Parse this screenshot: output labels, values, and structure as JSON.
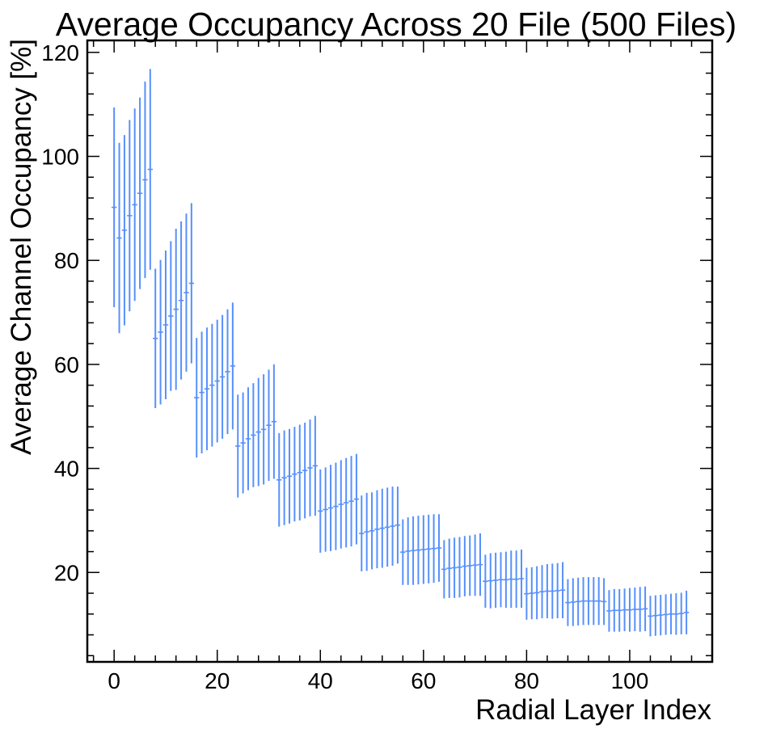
{
  "chart_data": {
    "type": "errorbar",
    "title": "Average Occupancy Across 20 File (500 Files)",
    "xlabel": "Radial Layer Index",
    "ylabel": "Average Channel Occupancy [%]",
    "xlim": [
      -5.2,
      116
    ],
    "ylim": [
      2.8,
      122.3
    ],
    "x_ticks": [
      0,
      20,
      40,
      60,
      80,
      100
    ],
    "y_ticks": [
      20,
      40,
      60,
      80,
      100,
      120
    ],
    "x_minor_step": 4,
    "y_minor_step": 4,
    "grid": false,
    "legend": "none",
    "series": [
      {
        "color": "#5790fc",
        "x": [
          0,
          1,
          2,
          3,
          4,
          5,
          6,
          7,
          8,
          9,
          10,
          11,
          12,
          13,
          14,
          15,
          16,
          17,
          18,
          19,
          20,
          21,
          22,
          23,
          24,
          25,
          26,
          27,
          28,
          29,
          30,
          31,
          32,
          33,
          34,
          35,
          36,
          37,
          38,
          39,
          40,
          41,
          42,
          43,
          44,
          45,
          46,
          47,
          48,
          49,
          50,
          51,
          52,
          53,
          54,
          55,
          56,
          57,
          58,
          59,
          60,
          61,
          62,
          63,
          64,
          65,
          66,
          67,
          68,
          69,
          70,
          71,
          72,
          73,
          74,
          75,
          76,
          77,
          78,
          79,
          80,
          81,
          82,
          83,
          84,
          85,
          86,
          87,
          88,
          89,
          90,
          91,
          92,
          93,
          94,
          95,
          96,
          97,
          98,
          99,
          100,
          101,
          102,
          103,
          104,
          105,
          106,
          107,
          108,
          109,
          110,
          111
        ],
        "y": [
          90.2,
          84.3,
          85.8,
          88.6,
          90.7,
          92.9,
          95.5,
          97.5,
          65.0,
          66.2,
          67.6,
          69.3,
          70.6,
          72.3,
          73.8,
          75.6,
          53.6,
          54.6,
          55.3,
          56.0,
          56.8,
          57.6,
          58.6,
          59.7,
          44.3,
          44.9,
          45.7,
          46.4,
          47.0,
          47.5,
          48.3,
          49.0,
          37.8,
          38.2,
          38.5,
          38.9,
          39.2,
          39.6,
          40.1,
          40.5,
          31.8,
          32.1,
          32.4,
          32.7,
          33.1,
          33.4,
          33.7,
          34.1,
          27.5,
          27.8,
          28.0,
          28.3,
          28.5,
          28.7,
          28.9,
          29.1,
          23.9,
          24.1,
          24.2,
          24.3,
          24.4,
          24.5,
          24.6,
          24.7,
          20.6,
          20.8,
          20.9,
          21.0,
          21.2,
          21.3,
          21.4,
          21.5,
          18.3,
          18.4,
          18.5,
          18.6,
          18.6,
          18.7,
          18.7,
          18.8,
          15.9,
          16.0,
          16.1,
          16.3,
          16.4,
          16.4,
          16.5,
          16.6,
          14.2,
          14.3,
          14.4,
          14.5,
          14.5,
          14.5,
          14.5,
          14.4,
          12.6,
          12.7,
          12.7,
          12.8,
          12.8,
          12.9,
          12.9,
          13.0,
          11.6,
          11.7,
          11.8,
          11.9,
          12.0,
          12.0,
          12.1,
          12.3
        ],
        "err": [
          19.2,
          18.3,
          18.3,
          18.4,
          18.5,
          18.4,
          18.9,
          19.3,
          13.4,
          13.9,
          14.3,
          14.4,
          15.5,
          15.2,
          15.2,
          15.4,
          11.5,
          11.7,
          11.8,
          11.8,
          11.8,
          11.9,
          12.0,
          12.2,
          9.9,
          9.7,
          9.9,
          10.0,
          10.4,
          10.6,
          10.7,
          11.0,
          9.0,
          9.1,
          9.1,
          9.1,
          9.2,
          9.2,
          9.3,
          9.6,
          8.0,
          8.1,
          8.3,
          8.4,
          8.5,
          8.6,
          8.7,
          8.7,
          7.3,
          7.5,
          7.4,
          7.5,
          7.6,
          7.6,
          7.6,
          7.4,
          6.3,
          6.5,
          6.6,
          6.6,
          6.6,
          6.6,
          6.6,
          6.5,
          5.6,
          5.7,
          5.8,
          5.8,
          5.8,
          5.8,
          5.9,
          6.0,
          5.1,
          5.3,
          5.3,
          5.3,
          5.4,
          5.5,
          5.5,
          5.6,
          5.0,
          5.0,
          5.1,
          5.1,
          5.2,
          5.3,
          5.3,
          5.4,
          4.5,
          4.6,
          4.6,
          4.6,
          4.6,
          4.6,
          4.6,
          4.5,
          4.0,
          4.1,
          4.1,
          4.1,
          4.2,
          4.2,
          4.3,
          4.3,
          3.9,
          3.9,
          3.9,
          3.9,
          3.9,
          4.0,
          4.0,
          4.2
        ]
      }
    ]
  }
}
